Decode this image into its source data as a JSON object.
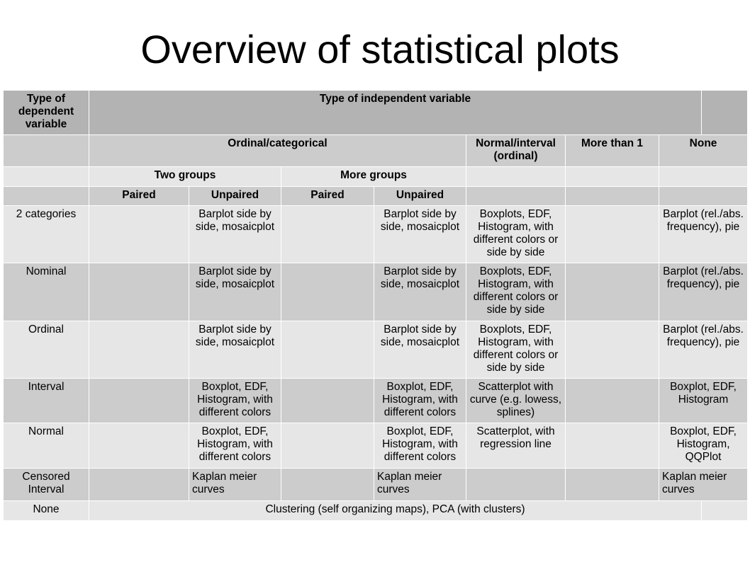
{
  "title": "Overview of statistical plots",
  "table": {
    "corner_header": "Type of dependent variable",
    "independent_header": "Type of independent variable",
    "group_headers": {
      "ordinal_categorical": "Ordinal/categorical",
      "normal_interval": "Normal/interval (ordinal)",
      "more_than_1": "More than 1",
      "none": "None"
    },
    "subgroups": {
      "two_groups": "Two groups",
      "more_groups": "More groups"
    },
    "subsub": {
      "paired_1": "Paired",
      "unpaired_1": "Unpaired",
      "paired_2": "Paired",
      "unpaired_2": "Unpaired"
    },
    "rows": [
      {
        "label": "2 categories",
        "two_paired": "",
        "two_unpaired": "Barplot side by side, mosaicplot",
        "more_paired": "",
        "more_unpaired": "Barplot side by side, mosaicplot",
        "normal_interval": "Boxplots, EDF, Histogram, with different colors or side by side",
        "more_than_1": "",
        "none": "Barplot (rel./abs. frequency), pie"
      },
      {
        "label": "Nominal",
        "two_paired": "",
        "two_unpaired": "Barplot side by side, mosaicplot",
        "more_paired": "",
        "more_unpaired": "Barplot side by side, mosaicplot",
        "normal_interval": "Boxplots, EDF, Histogram, with different colors or side by side",
        "more_than_1": "",
        "none": "Barplot (rel./abs. frequency), pie"
      },
      {
        "label": "Ordinal",
        "two_paired": "",
        "two_unpaired": "Barplot side by side, mosaicplot",
        "more_paired": "",
        "more_unpaired": "Barplot side by side, mosaicplot",
        "normal_interval": "Boxplots, EDF, Histogram, with different colors or side by side",
        "more_than_1": "",
        "none": "Barplot (rel./abs. frequency), pie"
      },
      {
        "label": "Interval",
        "two_paired": "",
        "two_unpaired": "Boxplot, EDF, Histogram, with different colors",
        "more_paired": "",
        "more_unpaired": "Boxplot, EDF, Histogram, with different colors",
        "normal_interval": "Scatterplot with curve (e.g. lowess, splines)",
        "more_than_1": "",
        "none": "Boxplot, EDF, Histogram"
      },
      {
        "label": "Normal",
        "two_paired": "",
        "two_unpaired": "Boxplot, EDF, Histogram, with different colors",
        "more_paired": "",
        "more_unpaired": "Boxplot, EDF, Histogram, with different colors",
        "normal_interval": "Scatterplot, with regression line",
        "more_than_1": "",
        "none": "Boxplot, EDF, Histogram, QQPlot"
      },
      {
        "label": "Censored Interval",
        "two_paired": "",
        "two_unpaired": "Kaplan meier curves",
        "more_paired": "",
        "more_unpaired": "Kaplan meier curves",
        "normal_interval": "",
        "more_than_1": "",
        "none": "Kaplan meier curves"
      }
    ],
    "none_row": {
      "label": "None",
      "merged": "Clustering (self organizing maps), PCA (with clusters)"
    }
  }
}
